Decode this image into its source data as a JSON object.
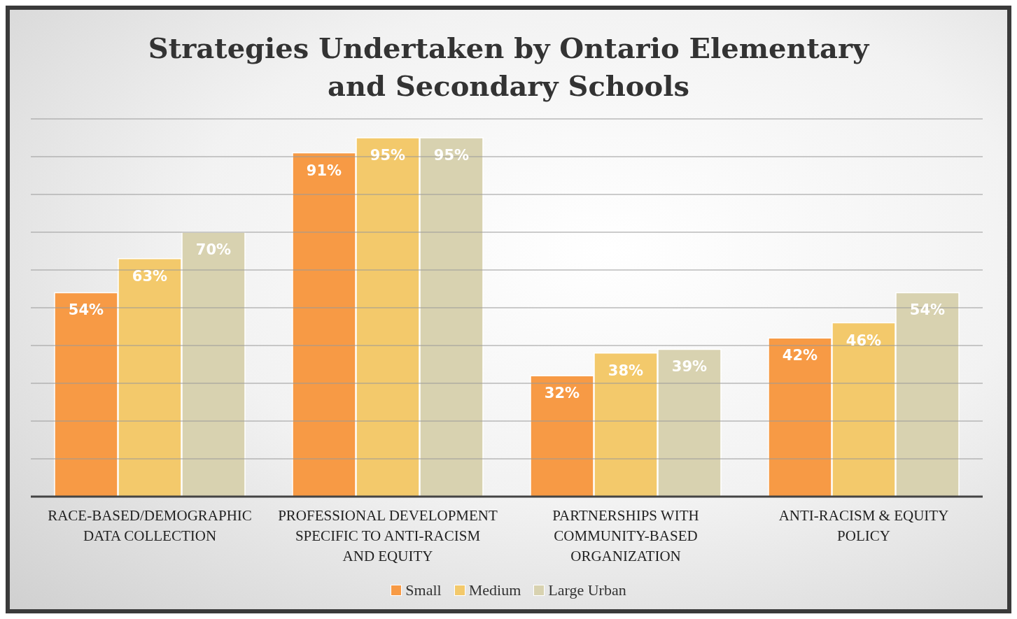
{
  "chart_data": {
    "type": "bar",
    "title": "Strategies Undertaken by Ontario Elementary and Secondary Schools",
    "categories": [
      "RACE-BASED/DEMOGRAPHIC DATA COLLECTION",
      "PROFESSIONAL DEVELOPMENT SPECIFIC TO ANTI-RACISM AND EQUITY",
      "PARTNERSHIPS WITH COMMUNITY-BASED ORGANIZATION",
      "ANTI-RACISM & EQUITY POLICY"
    ],
    "series": [
      {
        "name": "Small",
        "color": "#f79a45",
        "values": [
          54,
          91,
          32,
          42
        ],
        "value_labels": [
          "54%",
          "91%",
          "32%",
          "42%"
        ]
      },
      {
        "name": "Medium",
        "color": "#f3c96b",
        "values": [
          63,
          95,
          38,
          46
        ],
        "value_labels": [
          "63%",
          "95%",
          "38%",
          "46%"
        ]
      },
      {
        "name": "Large Urban",
        "color": "#d8d2b0",
        "values": [
          70,
          95,
          39,
          54
        ],
        "value_labels": [
          "70%",
          "95%",
          "39%",
          "54%"
        ]
      }
    ],
    "ylim": [
      0,
      100
    ],
    "yticks": [
      {
        "value": 0,
        "label": null
      },
      {
        "value": 10,
        "label": null
      },
      {
        "value": 20,
        "label": null
      },
      {
        "value": 30,
        "label": null
      },
      {
        "value": 40,
        "label": null
      },
      {
        "value": 50,
        "label": null
      },
      {
        "value": 60,
        "label": null
      },
      {
        "value": 70,
        "label": null
      },
      {
        "value": 80,
        "label": null
      },
      {
        "value": 90,
        "label": null
      },
      {
        "value": 100,
        "label": null
      }
    ],
    "tick_labels": "x",
    "grid": "y",
    "legend": "bottom"
  }
}
